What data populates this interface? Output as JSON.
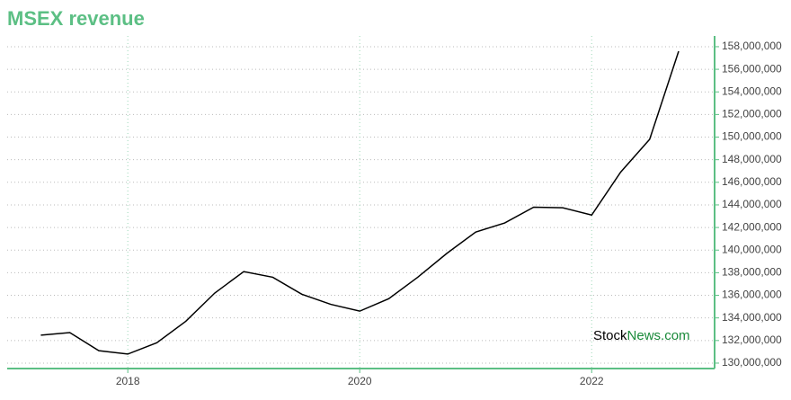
{
  "chart_data": {
    "type": "line",
    "title": "MSEX revenue",
    "watermark": [
      "Stock",
      "News.com"
    ],
    "x": [
      2017.25,
      2017.5,
      2017.75,
      2018.0,
      2018.25,
      2018.5,
      2018.75,
      2019.0,
      2019.25,
      2019.5,
      2019.75,
      2020.0,
      2020.25,
      2020.5,
      2020.75,
      2021.0,
      2021.25,
      2021.5,
      2021.75,
      2022.0,
      2022.25,
      2022.5,
      2022.75
    ],
    "series": [
      {
        "name": "MSEX revenue",
        "color": "#000000",
        "values": [
          132470000,
          132700000,
          131100000,
          130800000,
          131800000,
          133700000,
          136200000,
          138100000,
          137600000,
          136100000,
          135200000,
          134600000,
          135700000,
          137600000,
          139700000,
          141600000,
          142400000,
          143800000,
          143750000,
          143100000,
          146900000,
          149800000,
          157600000
        ]
      }
    ],
    "xlim": [
      2016.96,
      2023.06
    ],
    "xticks": [
      2018,
      2020,
      2022
    ],
    "ylim": [
      129520000,
      158950000
    ],
    "yticks": [
      {
        "value": 130000000,
        "label": "130,000,000"
      },
      {
        "value": 132000000,
        "label": "132,000,000"
      },
      {
        "value": 134000000,
        "label": "134,000,000"
      },
      {
        "value": 136000000,
        "label": "136,000,000"
      },
      {
        "value": 138000000,
        "label": "138,000,000"
      },
      {
        "value": 140000000,
        "label": "140,000,000"
      },
      {
        "value": 142000000,
        "label": "142,000,000"
      },
      {
        "value": 144000000,
        "label": "144,000,000"
      },
      {
        "value": 146000000,
        "label": "146,000,000"
      },
      {
        "value": 148000000,
        "label": "148,000,000"
      },
      {
        "value": 150000000,
        "label": "150,000,000"
      },
      {
        "value": 152000000,
        "label": "152,000,000"
      },
      {
        "value": 154000000,
        "label": "154,000,000"
      },
      {
        "value": 156000000,
        "label": "156,000,000"
      },
      {
        "value": 158000000,
        "label": "158,000,000"
      }
    ],
    "grid": true,
    "axis_color": "#5cbf84"
  }
}
